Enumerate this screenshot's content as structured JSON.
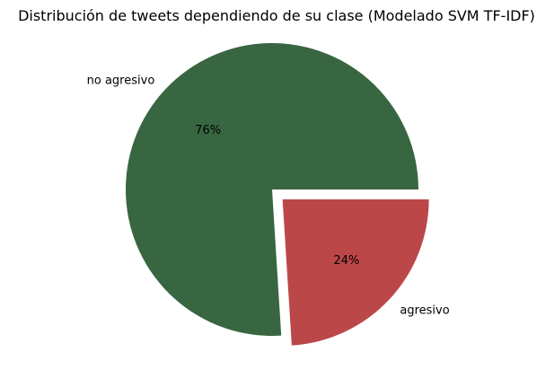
{
  "chart_data": {
    "type": "pie",
    "title": "Distribución de tweets dependiendo de su clase (Modelado SVM TF-IDF)",
    "slices": [
      {
        "label": "no agresivo",
        "value": 76,
        "pct_label": "76%",
        "color": "#386641",
        "exploded": false
      },
      {
        "label": "agresivo",
        "value": 24,
        "pct_label": "24%",
        "color": "#bc4749",
        "exploded": true
      }
    ],
    "start_angle_deg": 0,
    "direction": "counterclockwise",
    "legend": "none"
  }
}
